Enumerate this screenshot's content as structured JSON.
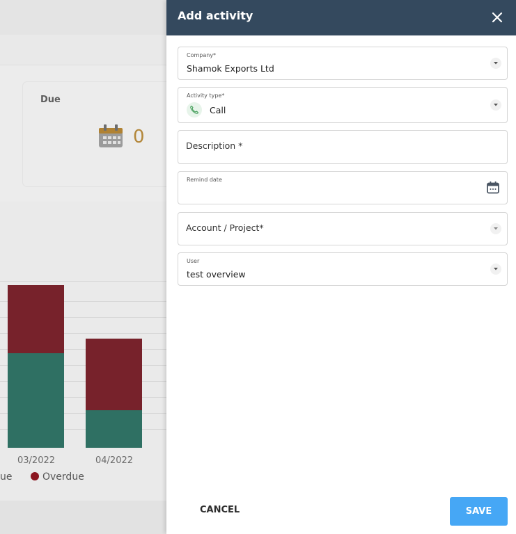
{
  "background": {
    "due_card": {
      "title": "Due",
      "count": "0"
    },
    "chart_data": {
      "type": "bar",
      "stacked": true,
      "categories": [
        "03/2022",
        "04/2022"
      ],
      "series": [
        {
          "name": "Due",
          "values": [
            9,
            3.6
          ]
        },
        {
          "name": "Overdue",
          "values": [
            6.5,
            6.8
          ]
        }
      ],
      "legend": [
        "ue",
        "Overdue"
      ],
      "colors": {
        "due": "#2f7063",
        "overdue": "#77222b"
      }
    }
  },
  "drawer": {
    "title": "Add activity",
    "close_icon": "close-icon",
    "fields": {
      "company": {
        "label": "Company*",
        "value": "Shamok Exports Ltd"
      },
      "activity_type": {
        "label": "Activity type*",
        "value": "Call",
        "icon": "phone-icon"
      },
      "description": {
        "placeholder": "Description *"
      },
      "remind_date": {
        "label": "Remind date",
        "icon": "calendar-icon"
      },
      "account_project": {
        "placeholder": "Account / Project*"
      },
      "user": {
        "label": "User",
        "value": "test overview"
      }
    },
    "actions": {
      "cancel": "CANCEL",
      "save": "SAVE"
    },
    "colors": {
      "header": "#34495e",
      "save": "#46a7f5"
    }
  }
}
